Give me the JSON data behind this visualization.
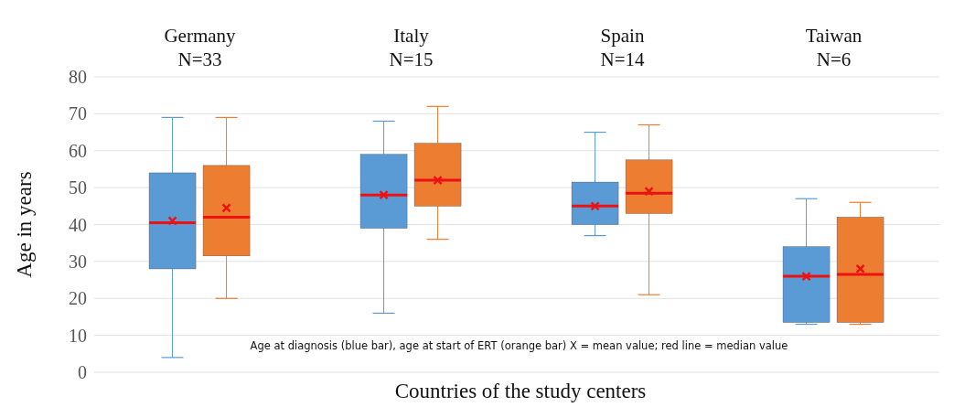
{
  "chart_data": {
    "type": "box",
    "categories": [
      "Germany\nN=33",
      "Italy\nN=15",
      "Spain\nN=14",
      "Taiwan\nN=6"
    ],
    "xlabel": "Countries of the study centers",
    "ylabel": "Age in years",
    "ylim": [
      0,
      80
    ],
    "yticks": [
      0,
      10,
      20,
      30,
      40,
      50,
      60,
      70,
      80
    ],
    "grid": "y",
    "annotations": [
      "Age at diagnosis (blue bar), age at start of ERT (orange bar)  X = mean value; red line = median value"
    ],
    "series": [
      {
        "color": "#5b9bd5",
        "boxes": [
          {
            "low": 4,
            "q1": 28,
            "median": 40.5,
            "q3": 54,
            "high": 69,
            "mean": 41
          },
          {
            "low": 16,
            "q1": 39,
            "median": 48,
            "q3": 59,
            "high": 68,
            "mean": 48
          },
          {
            "low": 37,
            "q1": 40,
            "median": 45,
            "q3": 51.5,
            "high": 65,
            "mean": 45
          },
          {
            "low": 13,
            "q1": 13.5,
            "median": 26,
            "q3": 34,
            "high": 47,
            "mean": 26
          }
        ]
      },
      {
        "color": "#ed7d31",
        "boxes": [
          {
            "low": 20,
            "q1": 31.5,
            "median": 42,
            "q3": 56,
            "high": 69,
            "mean": 44.5
          },
          {
            "low": 36,
            "q1": 45,
            "median": 52,
            "q3": 62,
            "high": 72,
            "mean": 52
          },
          {
            "low": 21,
            "q1": 43,
            "median": 48.5,
            "q3": 57.5,
            "high": 67,
            "mean": 49
          },
          {
            "low": 13,
            "q1": 13.5,
            "median": 26.5,
            "q3": 42,
            "high": 46,
            "mean": 28
          }
        ]
      }
    ]
  }
}
